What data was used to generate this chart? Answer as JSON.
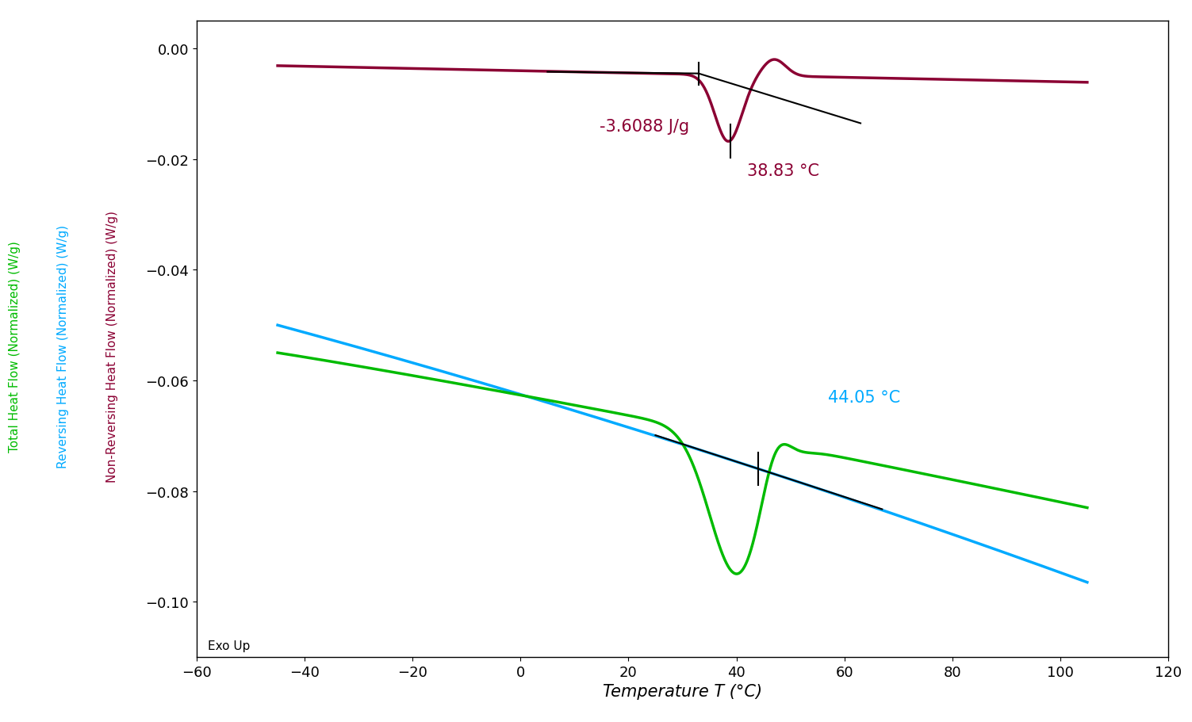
{
  "xlim": [
    -60,
    120
  ],
  "ylim": [
    -0.11,
    0.005
  ],
  "xlabel": "Temperature Τ (°C)",
  "ylabel_green": "Total Heat Flow (Normalized) (W/g)",
  "ylabel_blue": "Reversing Heat Flow (Normalized) (W/g)",
  "ylabel_red": "Non-Reversing Heat Flow (Normalized) (W/g)",
  "annotation_area": "-3.6088 J/g",
  "annotation_temp1": "38.83 °C",
  "annotation_temp2": "44.05 °C",
  "exo_label": "Exo Up",
  "color_green": "#00bb00",
  "color_blue": "#00aaff",
  "color_red": "#8b0033",
  "color_black": "#000000",
  "background_color": "#ffffff",
  "xticks": [
    -60,
    -40,
    -20,
    0,
    20,
    40,
    60,
    80,
    100,
    120
  ],
  "yticks": [
    0.0,
    -0.02,
    -0.04,
    -0.06,
    -0.08,
    -0.1
  ]
}
